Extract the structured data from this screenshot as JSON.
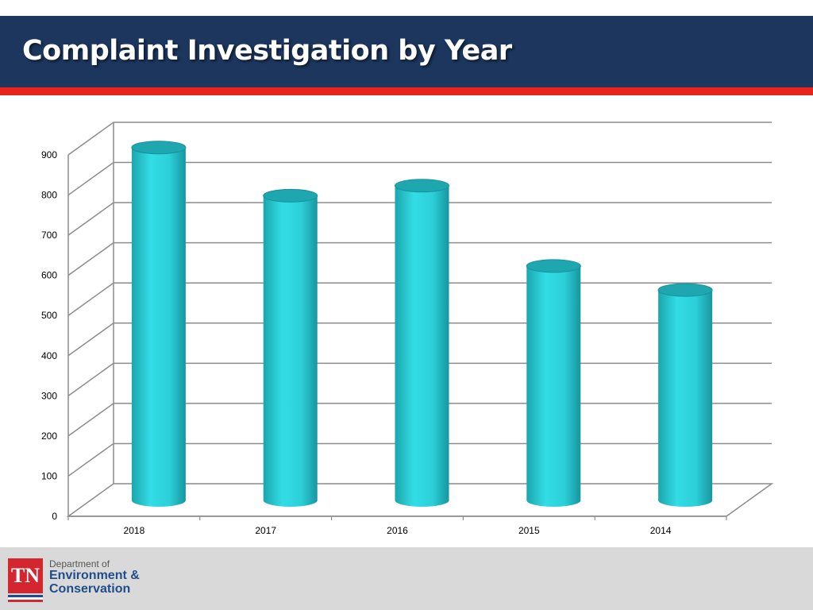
{
  "slide": {
    "title": "Complaint Investigation by Year"
  },
  "footer": {
    "logo_mark": "TN",
    "line1": "Department of",
    "line2": "Environment &",
    "line3": "Conservation"
  },
  "colors": {
    "header_bg": "#1c365e",
    "accent_bar": "#e8231b",
    "bar_fill": "#2fd3dc",
    "footer_bg": "#d9d9d9"
  },
  "chart_data": {
    "type": "bar",
    "style": "3d-cylinder",
    "categories": [
      "2018",
      "2017",
      "2016",
      "2015",
      "2014"
    ],
    "values": [
      865,
      745,
      770,
      570,
      510
    ],
    "yticks": [
      0,
      100,
      200,
      300,
      400,
      500,
      600,
      700,
      800,
      900
    ],
    "ylim": [
      0,
      900
    ],
    "title": "",
    "xlabel": "",
    "ylabel": "",
    "grid": true,
    "legend": "none"
  }
}
